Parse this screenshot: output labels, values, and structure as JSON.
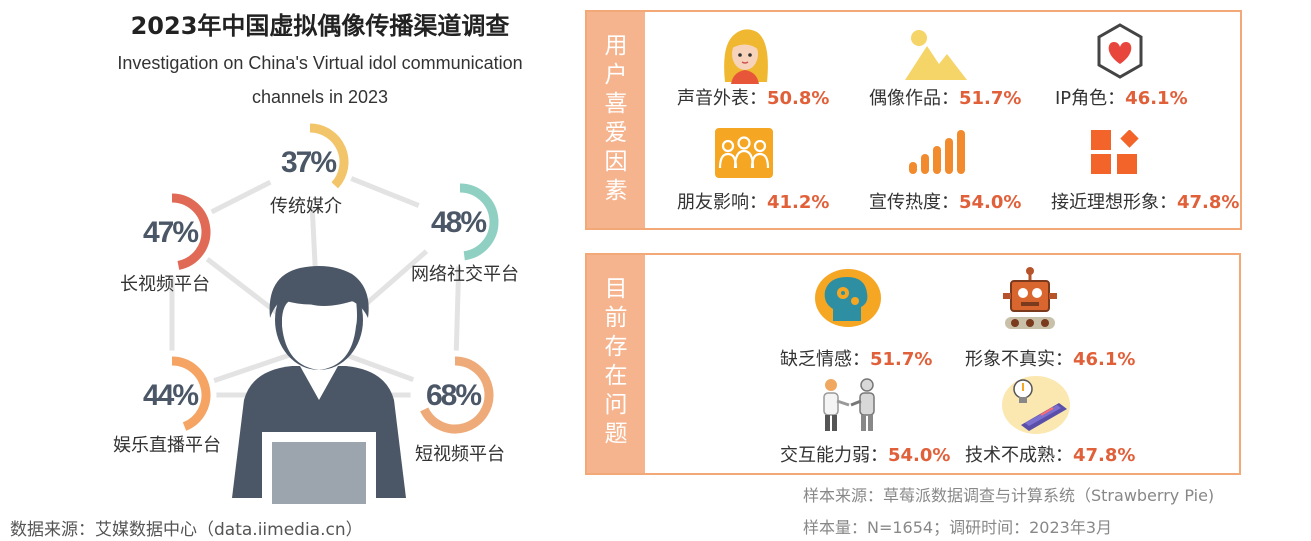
{
  "header": {
    "title_cn": "2023年中国虚拟偶像传播渠道调查",
    "title_en_line1": "Investigation on China's Virtual idol communication",
    "title_en_line2": "channels in 2023"
  },
  "source": "数据来源：艾媒数据中心（data.iimedia.cn）",
  "chart_data": {
    "type": "donut-ring",
    "title": "2023年中国虚拟偶像传播渠道调查",
    "categories": [
      "传统媒介",
      "网络社交平台",
      "短视频平台",
      "娱乐直播平台",
      "长视频平台"
    ],
    "values": [
      37,
      48,
      68,
      44,
      47
    ],
    "value_labels": [
      "37%",
      "48%",
      "68%",
      "44%",
      "47%"
    ],
    "colors": [
      "#f2c56b",
      "#8fd0c3",
      "#eeaa78",
      "#f5a464",
      "#e06a55"
    ],
    "track_color": "#e7e7e7",
    "spoke_color": "#e3e3e3",
    "center_icon": "person-with-laptop-icon"
  },
  "preference_panel": {
    "tab_chars": [
      "用",
      "户",
      "喜",
      "爱",
      "因",
      "素"
    ],
    "items": [
      {
        "icon": "girl-avatar-icon",
        "label": "声音外表：",
        "value": "50.8%"
      },
      {
        "icon": "mountain-landscape-icon",
        "label": "偶像作品：",
        "value": "51.7%"
      },
      {
        "icon": "heart-hexagon-icon",
        "label": "IP角色：",
        "value": "46.1%"
      },
      {
        "icon": "group-people-icon",
        "label": "朋友影响：",
        "value": "41.2%"
      },
      {
        "icon": "signal-bars-icon",
        "label": "宣传热度：",
        "value": "54.0%"
      },
      {
        "icon": "shapes-blocks-icon",
        "label": "接近理想形象：",
        "value": "47.8%"
      }
    ]
  },
  "problem_panel": {
    "tab_chars": [
      "目",
      "前",
      "存",
      "在",
      "问",
      "题"
    ],
    "items": [
      {
        "icon": "brain-gears-icon",
        "label": "缺乏情感：",
        "value": "51.7%"
      },
      {
        "icon": "robot-icon",
        "label": "形象不真实：",
        "value": "46.1%"
      },
      {
        "icon": "human-robot-handshake-icon",
        "label": "交互能力弱：",
        "value": "54.0%"
      },
      {
        "icon": "lightbulb-laptop-icon",
        "label": "技术不成熟：",
        "value": "47.8%"
      }
    ]
  },
  "footnotes": {
    "sample_source": "样本来源：草莓派数据调查与计算系统（Strawberry Pie)",
    "sample_size": "样本量：N=1654；调研时间：2023年3月"
  },
  "colors": {
    "accent": "#e0603a",
    "panel_border": "#f3a878",
    "tab_fill": "#f6b48e",
    "icon_orange": "#f28a2e"
  }
}
